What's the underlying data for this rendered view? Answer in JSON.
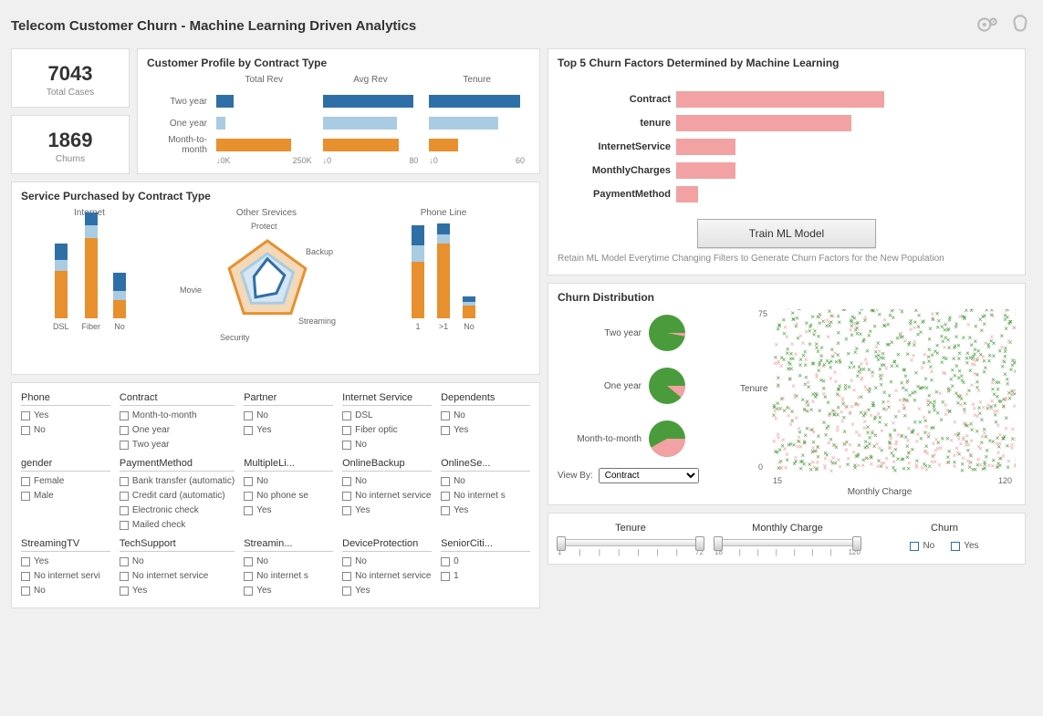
{
  "title": "Telecom Customer Churn - Machine Learning Driven Analytics",
  "kpi": {
    "total_cases": {
      "value": "7043",
      "label": "Total Cases"
    },
    "churns": {
      "value": "1869",
      "label": "Churns"
    }
  },
  "profile": {
    "title": "Customer Profile by Contract Type",
    "columns": [
      "Total Rev",
      "Avg Rev",
      "Tenure"
    ],
    "rows": [
      {
        "label": "Two year",
        "color": "#2f6fa7",
        "values": [
          0.18,
          0.95,
          0.95
        ]
      },
      {
        "label": "One year",
        "color": "#a9cce3",
        "values": [
          0.1,
          0.78,
          0.72
        ]
      },
      {
        "label": "Month-to-month",
        "color": "#e8902e",
        "values": [
          0.78,
          0.8,
          0.3
        ]
      }
    ],
    "axes": [
      {
        "min": "↓0K",
        "max": "250K"
      },
      {
        "min": "↓0",
        "max": "80"
      },
      {
        "min": "↓0",
        "max": "60"
      }
    ]
  },
  "services": {
    "title": "Service Purchased by Contract Type",
    "colors": {
      "two": "#2f6fa7",
      "one": "#a9cce3",
      "mtm": "#e8902e"
    },
    "internet": {
      "title": "Internet",
      "bars": [
        {
          "label": "DSL",
          "segments": [
            52,
            12,
            18
          ]
        },
        {
          "label": "Fiber",
          "segments": [
            88,
            14,
            14
          ]
        },
        {
          "label": "No",
          "segments": [
            20,
            10,
            20
          ]
        }
      ]
    },
    "phone": {
      "title": "Phone Line",
      "bars": [
        {
          "label": "1",
          "segments": [
            62,
            18,
            22
          ]
        },
        {
          "label": ">1",
          "segments": [
            82,
            10,
            12
          ]
        },
        {
          "label": "No",
          "segments": [
            14,
            4,
            6
          ]
        }
      ]
    },
    "radar": {
      "title": "Other Srevices",
      "axes": [
        "Protect",
        "Backup",
        "Streaming",
        "Security",
        "Movie"
      ]
    }
  },
  "filters": [
    {
      "title": "Phone",
      "options": [
        "Yes",
        "No"
      ]
    },
    {
      "title": "Contract",
      "options": [
        "Month-to-month",
        "One year",
        "Two year"
      ]
    },
    {
      "title": "Partner",
      "options": [
        "No",
        "Yes"
      ]
    },
    {
      "title": "Internet Service",
      "options": [
        "DSL",
        "Fiber optic",
        "No"
      ]
    },
    {
      "title": "Dependents",
      "options": [
        "No",
        "Yes"
      ]
    },
    {
      "title": "gender",
      "options": [
        "Female",
        "Male"
      ]
    },
    {
      "title": "PaymentMethod",
      "options": [
        "Bank transfer (automatic)",
        "Credit card (automatic)",
        "Electronic check",
        "Mailed check"
      ]
    },
    {
      "title": "MultipleLi...",
      "options": [
        "No",
        "No phone se",
        "Yes"
      ]
    },
    {
      "title": "OnlineBackup",
      "options": [
        "No",
        "No internet service",
        "Yes"
      ]
    },
    {
      "title": "OnlineSe...",
      "options": [
        "No",
        "No internet s",
        "Yes"
      ]
    },
    {
      "title": "StreamingTV",
      "options": [
        "Yes",
        "No internet servi",
        "No"
      ]
    },
    {
      "title": "TechSupport",
      "options": [
        "No",
        "No internet service",
        "Yes"
      ]
    },
    {
      "title": "Streamin...",
      "options": [
        "No",
        "No internet s",
        "Yes"
      ]
    },
    {
      "title": "DeviceProtection",
      "options": [
        "No",
        "No internet service",
        "Yes"
      ]
    },
    {
      "title": "SeniorCiti...",
      "options": [
        "0",
        "1"
      ]
    }
  ],
  "factors": {
    "title": "Top 5 Churn Factors Determined by Machine Learning",
    "color": "#f2a2a2",
    "items": [
      {
        "label": "Contract",
        "value": 0.95
      },
      {
        "label": "tenure",
        "value": 0.8
      },
      {
        "label": "InternetService",
        "value": 0.27
      },
      {
        "label": "MonthlyCharges",
        "value": 0.27
      },
      {
        "label": "PaymentMethod",
        "value": 0.1
      }
    ],
    "button": "Train ML Model",
    "note": "Retain ML Model Everytime Changing Filters to Generate Churn Factors for the New Population"
  },
  "distribution": {
    "title": "Churn Distribution",
    "pie_colors": {
      "no": "#4a9b3c",
      "yes": "#f2a2a2"
    },
    "pies": [
      {
        "label": "Two year",
        "yes_pct": 0.03
      },
      {
        "label": "One year",
        "yes_pct": 0.11
      },
      {
        "label": "Month-to-month",
        "yes_pct": 0.42
      }
    ],
    "view_by_label": "View By:",
    "view_by_selected": "Contract",
    "scatter": {
      "ylabel": "Tenure",
      "xlabel": "Monthly Charge",
      "ylim": [
        0,
        75
      ],
      "xlim": [
        15,
        120
      ],
      "n_points": 900,
      "colors": {
        "no": "#4a9b3c",
        "yes": "#f2a2a2"
      }
    }
  },
  "sliders": {
    "tenure": {
      "title": "Tenure",
      "min": "1",
      "max": "72"
    },
    "monthly": {
      "title": "Monthly Charge",
      "min": "18",
      "max": "120"
    },
    "churn": {
      "title": "Churn",
      "options": [
        "No",
        "Yes"
      ]
    }
  }
}
